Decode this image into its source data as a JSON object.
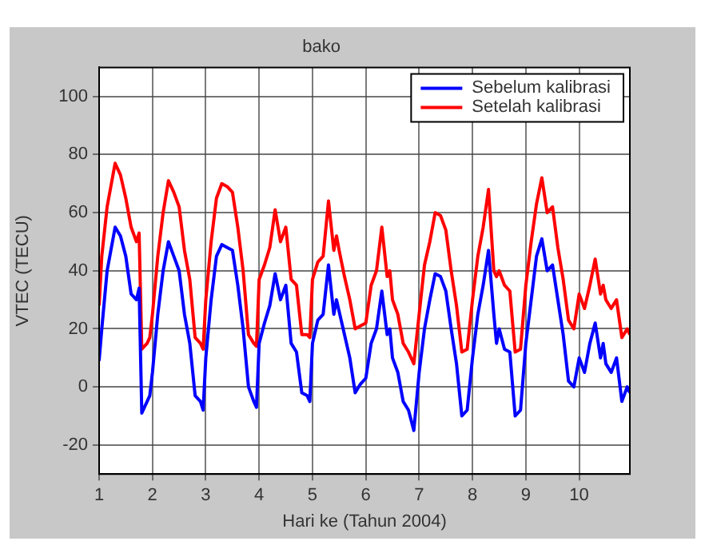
{
  "chart_data": {
    "type": "line",
    "title": "bako",
    "xlabel": "Hari ke (Tahun 2004)",
    "ylabel": "VTEC (TECU)",
    "x": [
      1.0,
      1.05,
      1.15,
      1.3,
      1.4,
      1.5,
      1.6,
      1.7,
      1.75,
      1.8,
      1.9,
      1.95,
      2.0,
      2.1,
      2.2,
      2.3,
      2.4,
      2.5,
      2.6,
      2.7,
      2.8,
      2.9,
      2.95,
      3.0,
      3.1,
      3.2,
      3.3,
      3.4,
      3.5,
      3.6,
      3.7,
      3.8,
      3.9,
      3.95,
      4.0,
      4.1,
      4.2,
      4.3,
      4.4,
      4.5,
      4.6,
      4.7,
      4.8,
      4.9,
      4.95,
      5.0,
      5.1,
      5.2,
      5.3,
      5.4,
      5.45,
      5.5,
      5.6,
      5.7,
      5.8,
      5.9,
      6.0,
      6.1,
      6.2,
      6.3,
      6.4,
      6.45,
      6.5,
      6.6,
      6.7,
      6.8,
      6.9,
      7.0,
      7.1,
      7.2,
      7.3,
      7.4,
      7.5,
      7.6,
      7.7,
      7.8,
      7.9,
      8.0,
      8.1,
      8.2,
      8.3,
      8.4,
      8.45,
      8.5,
      8.6,
      8.7,
      8.8,
      8.9,
      9.0,
      9.1,
      9.2,
      9.3,
      9.4,
      9.5,
      9.6,
      9.7,
      9.8,
      9.9,
      10.0,
      10.1,
      10.2,
      10.3,
      10.4,
      10.45,
      10.5,
      10.6,
      10.7,
      10.8,
      10.9,
      10.95
    ],
    "series": [
      {
        "name": "Sebelum kalibrasi",
        "color": "#0000ff",
        "values": [
          9,
          20,
          40,
          55,
          52,
          45,
          32,
          30,
          34,
          -9,
          -5,
          -3,
          5,
          25,
          40,
          50,
          45,
          40,
          25,
          15,
          -3,
          -5,
          -8,
          10,
          30,
          45,
          49,
          48,
          47,
          35,
          20,
          0,
          -5,
          -7,
          15,
          22,
          28,
          39,
          30,
          35,
          15,
          12,
          -2,
          -3,
          -5,
          15,
          23,
          25,
          42,
          25,
          30,
          26,
          18,
          10,
          -2,
          1,
          3,
          15,
          20,
          33,
          18,
          20,
          10,
          5,
          -5,
          -8,
          -15,
          5,
          20,
          30,
          39,
          38,
          33,
          20,
          8,
          -10,
          -8,
          10,
          25,
          35,
          47,
          25,
          15,
          20,
          13,
          12,
          -10,
          -8,
          15,
          30,
          45,
          51,
          40,
          42,
          30,
          18,
          2,
          0,
          10,
          5,
          15,
          22,
          10,
          15,
          8,
          5,
          10,
          -5,
          0,
          -2
        ]
      },
      {
        "name": "Setelah kalibrasi",
        "color": "#ff0000",
        "values": [
          28,
          45,
          62,
          77,
          73,
          65,
          55,
          50,
          53,
          13,
          15,
          17,
          25,
          45,
          60,
          71,
          67,
          62,
          47,
          37,
          17,
          15,
          13,
          30,
          50,
          65,
          70,
          69,
          67,
          55,
          40,
          18,
          15,
          14,
          37,
          42,
          48,
          61,
          50,
          55,
          37,
          35,
          18,
          18,
          17,
          37,
          43,
          45,
          64,
          47,
          52,
          47,
          38,
          30,
          20,
          21,
          22,
          35,
          40,
          55,
          38,
          40,
          30,
          25,
          15,
          12,
          8,
          25,
          42,
          50,
          60,
          59,
          54,
          40,
          28,
          12,
          13,
          30,
          45,
          55,
          68,
          40,
          38,
          40,
          35,
          33,
          12,
          13,
          35,
          50,
          63,
          72,
          60,
          62,
          48,
          37,
          23,
          20,
          32,
          27,
          35,
          44,
          32,
          35,
          30,
          27,
          30,
          17,
          20,
          18
        ]
      }
    ],
    "xlim": [
      1,
      10.95
    ],
    "xticks": [
      1,
      2,
      3,
      4,
      5,
      6,
      7,
      8,
      9,
      10
    ],
    "ylim": [
      -30,
      110
    ],
    "yticks": [
      -20,
      0,
      20,
      40,
      60,
      80,
      100
    ],
    "grid": true,
    "legend": "top right",
    "marker": "none",
    "line_style": "solid"
  }
}
